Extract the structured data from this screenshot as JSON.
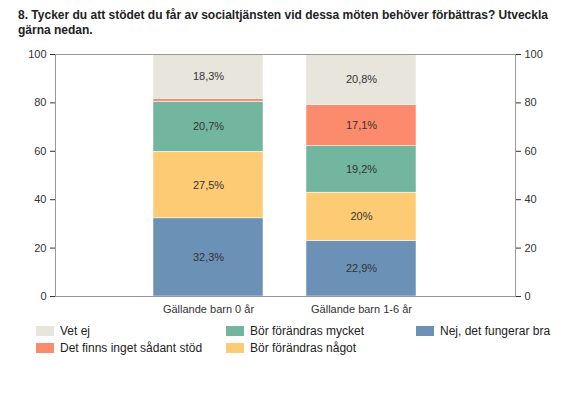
{
  "chart_data": {
    "type": "bar",
    "title": "8. Tycker du att stödet du får av socialtjänsten vid dessa möten behöver förbättras? Utveckla gärna nedan.",
    "categories": [
      "Gällande barn 0 år",
      "Gällande barn 1-6 år"
    ],
    "stacked": true,
    "data_labels": true,
    "grid": false,
    "legend": "bottom",
    "ylim": [
      0,
      100
    ],
    "yticks": [
      0,
      20,
      40,
      60,
      80,
      100
    ],
    "series": [
      {
        "name": "Nej, det fungerar bra",
        "color": "#6b91b7",
        "values": [
          32.3,
          22.9
        ],
        "value_labels": [
          "32,3%",
          "22,9%"
        ]
      },
      {
        "name": "Bör förändras något",
        "color": "#fdcb74",
        "values": [
          27.5,
          20
        ],
        "value_labels": [
          "27,5%",
          "20%"
        ]
      },
      {
        "name": "Bör förändras mycket",
        "color": "#73b6a0",
        "values": [
          20.7,
          19.2
        ],
        "value_labels": [
          "20,7%",
          "19,2%"
        ]
      },
      {
        "name": "Det finns inget sådant stöd",
        "color": "#fb8b6c",
        "values": [
          1.2,
          17.1
        ],
        "value_labels": [
          null,
          "17,1%"
        ]
      },
      {
        "name": "Vet ej",
        "color": "#e8e5dd",
        "values": [
          18.3,
          20.8
        ],
        "value_labels": [
          "18,3%",
          "20,8%"
        ]
      }
    ]
  }
}
